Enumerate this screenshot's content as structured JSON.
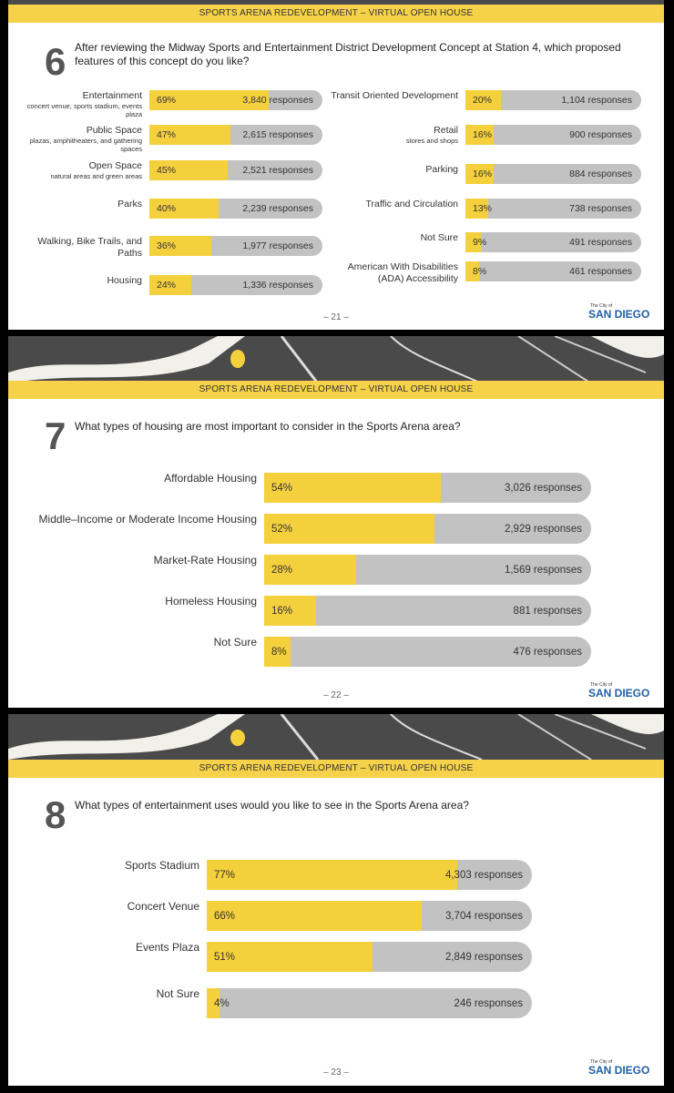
{
  "banner": "SPORTS ARENA REDEVELOPMENT – VIRTUAL OPEN HOUSE",
  "logo": {
    "small": "The City of",
    "name": "SAN DIEGO"
  },
  "accent_color": "#f5d03d",
  "track_color": "#c2c2c2",
  "pages": [
    {
      "page_number": "– 21 –",
      "question_number": "6",
      "question": "After reviewing the Midway Sports and Entertainment District Development Concept at Station 4, which proposed features of this concept do you like?"
    },
    {
      "page_number": "– 22 –",
      "question_number": "7",
      "question": "What types of housing are most important to consider in the Sports Arena area?"
    },
    {
      "page_number": "– 23 –",
      "question_number": "8",
      "question": "What types of entertainment uses would you like to see in the Sports Arena area?"
    }
  ],
  "chart_data": [
    {
      "type": "bar",
      "orientation": "horizontal",
      "question": "6",
      "columns": [
        [
          {
            "label": "Entertainment",
            "sublabel": "concert venue, sports stadium, events plaza",
            "value": 69,
            "pct_label": "69%",
            "responses": "3,840 responses"
          },
          {
            "label": "Public Space",
            "sublabel": "plazas, amphitheaters, and gathering spaces",
            "value": 47,
            "pct_label": "47%",
            "responses": "2,615 responses"
          },
          {
            "label": "Open Space",
            "sublabel": "natural areas and green areas",
            "value": 45,
            "pct_label": "45%",
            "responses": "2,521 responses"
          },
          {
            "label": "Parks",
            "sublabel": "",
            "value": 40,
            "pct_label": "40%",
            "responses": "2,239 responses"
          },
          {
            "label": "Walking, Bike Trails, and Paths",
            "sublabel": "",
            "value": 36,
            "pct_label": "36%",
            "responses": "1,977 responses"
          },
          {
            "label": "Housing",
            "sublabel": "",
            "value": 24,
            "pct_label": "24%",
            "responses": "1,336 responses"
          }
        ],
        [
          {
            "label": "Transit Oriented Development",
            "sublabel": "",
            "value": 20,
            "pct_label": "20%",
            "responses": "1,104 responses"
          },
          {
            "label": "Retail",
            "sublabel": "stores and shops",
            "value": 16,
            "pct_label": "16%",
            "responses": "900 responses"
          },
          {
            "label": "Parking",
            "sublabel": "",
            "value": 16,
            "pct_label": "16%",
            "responses": "884 responses"
          },
          {
            "label": "Traffic and Circulation",
            "sublabel": "",
            "value": 13,
            "pct_label": "13%",
            "responses": "738 responses"
          },
          {
            "label": "Not Sure",
            "sublabel": "",
            "value": 9,
            "pct_label": "9%",
            "responses": "491 responses"
          },
          {
            "label": "American With Disabilities (ADA) Accessibility",
            "sublabel": "",
            "value": 8,
            "pct_label": "8%",
            "responses": "461 responses"
          }
        ]
      ]
    },
    {
      "type": "bar",
      "orientation": "horizontal",
      "question": "7",
      "rows": [
        {
          "label": "Affordable Housing",
          "value": 54,
          "pct_label": "54%",
          "responses": "3,026 responses"
        },
        {
          "label": "Middle–Income or Moderate Income Housing",
          "value": 52,
          "pct_label": "52%",
          "responses": "2,929 responses"
        },
        {
          "label": "Market-Rate Housing",
          "value": 28,
          "pct_label": "28%",
          "responses": "1,569 responses"
        },
        {
          "label": "Homeless Housing",
          "value": 16,
          "pct_label": "16%",
          "responses": "881 responses"
        },
        {
          "label": "Not Sure",
          "value": 8,
          "pct_label": "8%",
          "responses": "476 responses"
        }
      ]
    },
    {
      "type": "bar",
      "orientation": "horizontal",
      "question": "8",
      "rows": [
        {
          "label": "Sports Stadium",
          "value": 77,
          "pct_label": "77%",
          "responses": "4,303 responses"
        },
        {
          "label": "Concert Venue",
          "value": 66,
          "pct_label": "66%",
          "responses": "3,704 responses"
        },
        {
          "label": "Events Plaza",
          "value": 51,
          "pct_label": "51%",
          "responses": "2,849 responses"
        },
        {
          "label": "Not Sure",
          "value": 4,
          "pct_label": "4%",
          "responses": "246 responses"
        }
      ]
    }
  ]
}
